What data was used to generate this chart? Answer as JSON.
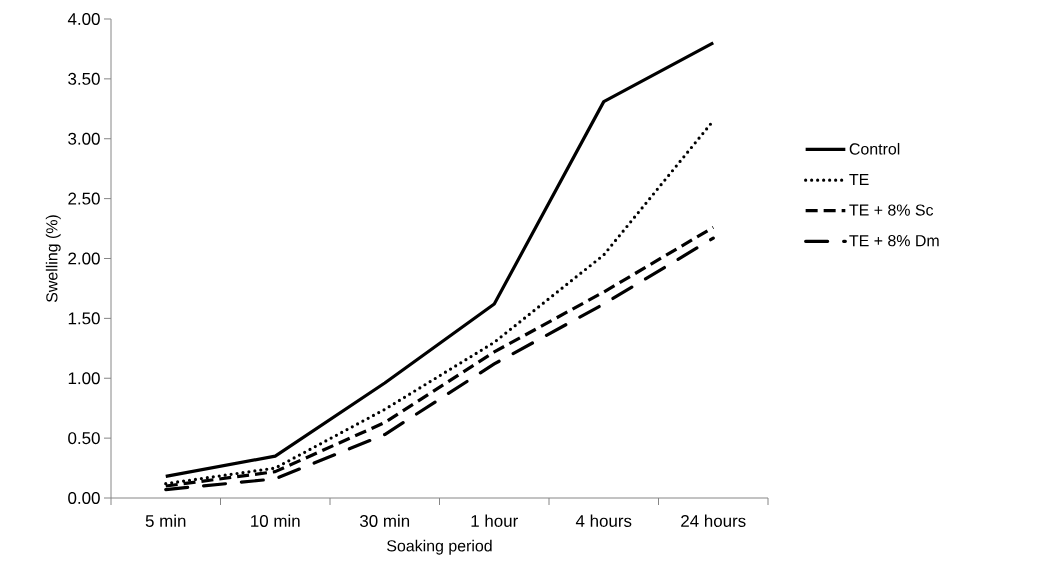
{
  "chart_data": {
    "type": "line",
    "xlabel": "Soaking period",
    "ylabel": "Swelling (%)",
    "categories": [
      "5 min",
      "10 min",
      "30 min",
      "1 hour",
      "4 hours",
      "24 hours"
    ],
    "ylim": [
      0,
      4
    ],
    "yticks": [
      {
        "value": 0,
        "label": "0.00"
      },
      {
        "value": 0.5,
        "label": "0.50"
      },
      {
        "value": 1,
        "label": "1.00"
      },
      {
        "value": 1.5,
        "label": "1.50"
      },
      {
        "value": 2,
        "label": "2.00"
      },
      {
        "value": 2.5,
        "label": "2.50"
      },
      {
        "value": 3,
        "label": "3.00"
      },
      {
        "value": 3.5,
        "label": "3.50"
      },
      {
        "value": 4,
        "label": "4.00"
      }
    ],
    "grid": false,
    "legend": "right",
    "marker": "none",
    "series": [
      {
        "name": "Control",
        "color": "#000000",
        "line_style": "solid",
        "values": [
          0.18,
          0.35,
          0.96,
          1.62,
          3.31,
          3.8
        ]
      },
      {
        "name": "TE",
        "color": "#000000",
        "line_style": "dotted",
        "values": [
          0.12,
          0.25,
          0.74,
          1.3,
          2.03,
          3.15
        ]
      },
      {
        "name": "TE + 8% Sc",
        "color": "#000000",
        "line_style": "dashed",
        "values": [
          0.1,
          0.22,
          0.63,
          1.22,
          1.72,
          2.26
        ]
      },
      {
        "name": "TE + 8% Dm",
        "color": "#000000",
        "line_style": "dashdot",
        "values": [
          0.07,
          0.16,
          0.53,
          1.12,
          1.62,
          2.17
        ]
      }
    ]
  }
}
